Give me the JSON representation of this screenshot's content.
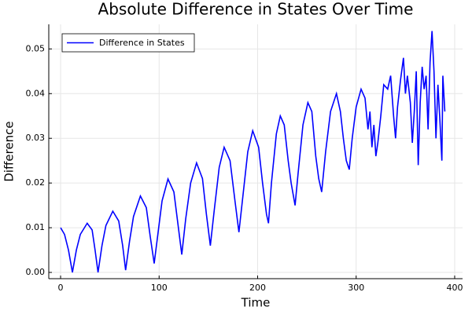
{
  "chart_data": {
    "type": "line",
    "title": "Absolute Difference in States Over Time",
    "x_label": "Time",
    "y_label": "Difference",
    "xlim": [
      -12,
      408
    ],
    "ylim": [
      -0.0014,
      0.0555
    ],
    "xticks": [
      0,
      100,
      200,
      300,
      400
    ],
    "yticks": [
      {
        "value": 0,
        "label": "0.00"
      },
      0.01,
      0.02,
      0.03,
      0.04,
      0.05
    ],
    "grid": true,
    "legend": "top-left",
    "x": [
      0,
      4,
      8,
      12,
      16,
      20,
      27,
      32,
      35,
      38,
      42,
      46,
      53,
      59,
      63,
      66,
      70,
      74,
      81,
      87,
      91,
      95,
      99,
      103,
      109,
      115,
      119,
      123,
      127,
      132,
      138,
      144,
      148,
      152,
      156,
      161,
      166,
      172,
      177,
      181,
      185,
      190,
      195,
      201,
      205,
      209,
      211,
      214,
      219,
      223,
      227,
      231,
      234,
      238,
      241,
      246,
      251,
      255,
      259,
      262,
      265,
      269,
      274,
      280,
      284,
      287,
      290,
      293,
      296,
      300,
      305,
      309,
      312,
      314,
      316,
      318,
      320,
      322,
      325,
      328,
      332,
      335,
      338,
      340,
      342,
      345,
      348,
      350,
      352,
      355,
      357,
      359,
      361,
      363,
      365,
      367,
      369,
      371,
      373,
      375,
      377,
      379,
      381,
      383,
      385,
      387,
      388,
      390
    ],
    "series": [
      {
        "name": "Difference in States",
        "color": "#0000ff",
        "values": [
          0.01,
          0.0085,
          0.005,
          0.0,
          0.005,
          0.0085,
          0.011,
          0.0095,
          0.005,
          0.0,
          0.006,
          0.0105,
          0.0137,
          0.0115,
          0.006,
          0.0005,
          0.007,
          0.0125,
          0.0171,
          0.0145,
          0.008,
          0.002,
          0.009,
          0.016,
          0.0209,
          0.018,
          0.011,
          0.004,
          0.012,
          0.02,
          0.0245,
          0.021,
          0.013,
          0.006,
          0.014,
          0.0235,
          0.028,
          0.025,
          0.016,
          0.009,
          0.017,
          0.027,
          0.0317,
          0.028,
          0.02,
          0.013,
          0.011,
          0.02,
          0.031,
          0.035,
          0.033,
          0.025,
          0.02,
          0.015,
          0.022,
          0.033,
          0.038,
          0.036,
          0.026,
          0.021,
          0.018,
          0.027,
          0.036,
          0.04,
          0.036,
          0.03,
          0.025,
          0.023,
          0.03,
          0.037,
          0.041,
          0.039,
          0.032,
          0.036,
          0.028,
          0.033,
          0.026,
          0.029,
          0.035,
          0.042,
          0.041,
          0.044,
          0.035,
          0.03,
          0.037,
          0.043,
          0.048,
          0.04,
          0.044,
          0.038,
          0.029,
          0.036,
          0.045,
          0.024,
          0.038,
          0.046,
          0.041,
          0.044,
          0.032,
          0.047,
          0.054,
          0.045,
          0.03,
          0.042,
          0.034,
          0.025,
          0.044,
          0.036
        ]
      }
    ]
  }
}
